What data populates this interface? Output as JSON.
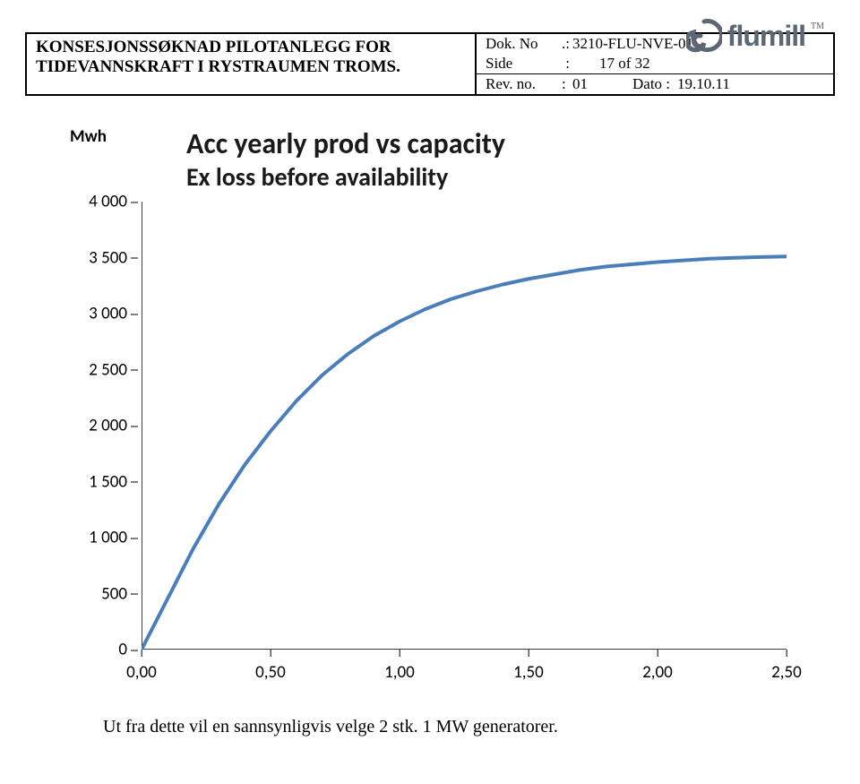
{
  "header": {
    "left_line1": "KONSESJONSSØKNAD PILOTANLEGG FOR",
    "left_line2": "TIDEVANNSKRAFT I RYSTRAUMEN TROMS.",
    "dok_no_lbl": "Dok. No",
    "dok_no_val": "3210-FLU-NVE-01",
    "side_lbl": "Side",
    "side_val": "17 of 32",
    "rev_lbl": "Rev. no.",
    "rev_val": "01",
    "dato_lbl": "Dato :",
    "dato_val": "19.10.11"
  },
  "logo": {
    "text": "flumill",
    "tm": "TM",
    "color": "#5d6673"
  },
  "chart": {
    "type": "line",
    "title1": "Acc yearly prod vs capacity",
    "title2": "Ex loss before availability",
    "ylabel": "Mwh",
    "ylim": [
      0,
      4000
    ],
    "ytick_step": 500,
    "yticks": [
      "0",
      "500",
      "1 000",
      "1 500",
      "2 000",
      "2 500",
      "3 000",
      "3 500",
      "4 000"
    ],
    "xlim": [
      0,
      2.5
    ],
    "xtick_step": 0.5,
    "xticks": [
      "0,00",
      "0,50",
      "1,00",
      "1,50",
      "2,00",
      "2,50"
    ],
    "line_color": "#4a7ebb",
    "line_width": 4,
    "axis_color": "#000000",
    "background_color": "#ffffff",
    "title_color": "#1a1a1a",
    "title_fontsize": 32,
    "subtitle_fontsize": 28,
    "tick_fontsize": 19,
    "grid": false,
    "data": {
      "x": [
        0.0,
        0.1,
        0.2,
        0.3,
        0.4,
        0.5,
        0.6,
        0.7,
        0.8,
        0.9,
        1.0,
        1.1,
        1.2,
        1.3,
        1.4,
        1.5,
        1.6,
        1.7,
        1.8,
        1.9,
        2.0,
        2.1,
        2.2,
        2.3,
        2.4,
        2.5
      ],
      "y": [
        0,
        450,
        900,
        1300,
        1650,
        1950,
        2220,
        2450,
        2640,
        2800,
        2930,
        3040,
        3130,
        3200,
        3260,
        3310,
        3350,
        3390,
        3420,
        3440,
        3460,
        3475,
        3490,
        3498,
        3505,
        3510
      ]
    }
  },
  "footer": "Ut fra dette vil en sannsynligvis velge 2 stk. 1 MW generatorer."
}
